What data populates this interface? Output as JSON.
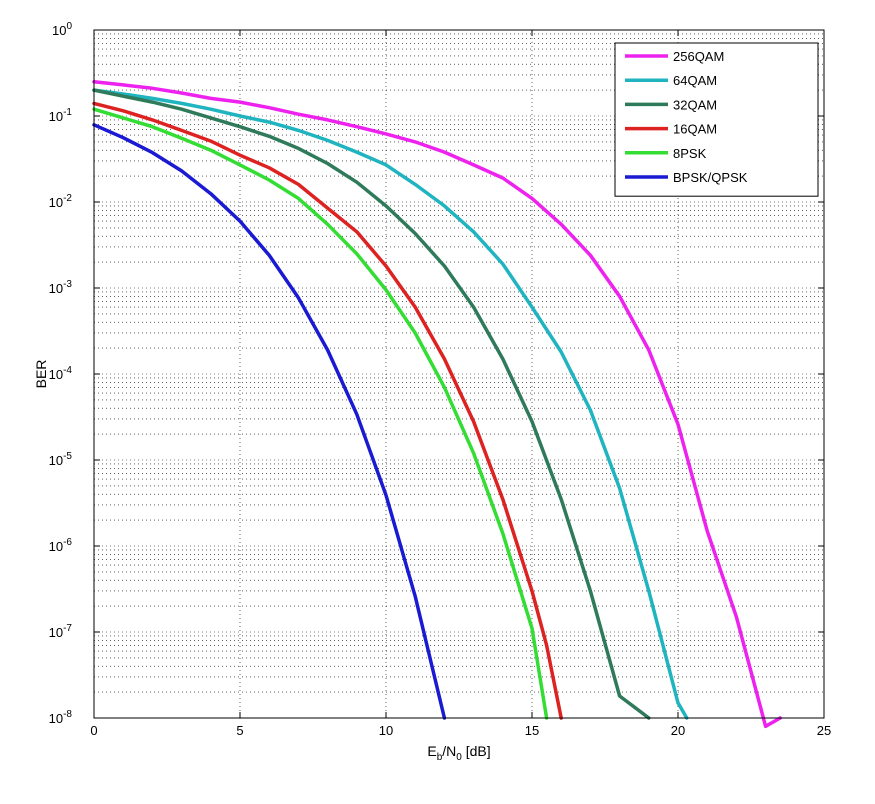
{
  "chart_data": {
    "type": "line",
    "xlabel": {
      "main": "E",
      "sub1": "b",
      "mid": "/N",
      "sub2": "0",
      "tail": " [dB]"
    },
    "ylabel": "BER",
    "yscale": "log",
    "xlim": [
      0,
      25
    ],
    "ylim": [
      1e-08,
      1
    ],
    "x_ticks": [
      0,
      5,
      10,
      15,
      20,
      25
    ],
    "y_ticks": [
      {
        "value": 1,
        "base": "10",
        "exp": "0"
      },
      {
        "value": 0.1,
        "base": "10",
        "exp": "-1"
      },
      {
        "value": 0.01,
        "base": "10",
        "exp": "-2"
      },
      {
        "value": 0.001,
        "base": "10",
        "exp": "-3"
      },
      {
        "value": 0.0001,
        "base": "10",
        "exp": "-4"
      },
      {
        "value": 1e-05,
        "base": "10",
        "exp": "-5"
      },
      {
        "value": 1e-06,
        "base": "10",
        "exp": "-6"
      },
      {
        "value": 1e-07,
        "base": "10",
        "exp": "-7"
      },
      {
        "value": 1e-08,
        "base": "10",
        "exp": "-8"
      }
    ],
    "grid": true,
    "legend_position": "top-right",
    "series": [
      {
        "name": "256QAM",
        "color": "#ee22ee",
        "x": [
          0,
          1,
          2,
          3,
          4,
          5,
          6,
          7,
          8,
          9,
          10,
          11,
          12,
          13,
          14,
          15,
          16,
          17,
          18,
          19,
          20,
          21,
          22,
          23,
          23.5
        ],
        "y": [
          0.25,
          0.23,
          0.21,
          0.185,
          0.16,
          0.145,
          0.125,
          0.105,
          0.09,
          0.075,
          0.062,
          0.05,
          0.038,
          0.027,
          0.019,
          0.011,
          0.0055,
          0.0024,
          0.0008,
          0.00019,
          2.6e-05,
          1.5e-06,
          1.5e-07,
          8e-09,
          1e-08
        ]
      },
      {
        "name": "64QAM",
        "color": "#1fb4bf",
        "x": [
          0,
          1,
          2,
          3,
          4,
          5,
          6,
          7,
          8,
          9,
          10,
          11,
          12,
          13,
          14,
          15,
          16,
          17,
          18,
          19,
          20,
          20.3
        ],
        "y": [
          0.2,
          0.18,
          0.16,
          0.14,
          0.12,
          0.1,
          0.085,
          0.068,
          0.052,
          0.038,
          0.027,
          0.016,
          0.009,
          0.0045,
          0.0019,
          0.0006,
          0.00018,
          3.8e-05,
          4.7e-06,
          3e-07,
          1.5e-08,
          1e-08
        ]
      },
      {
        "name": "32QAM",
        "color": "#2e7a5a",
        "x": [
          0,
          1,
          2,
          3,
          4,
          5,
          6,
          7,
          8,
          9,
          10,
          11,
          12,
          13,
          14,
          15,
          16,
          17,
          18,
          19
        ],
        "y": [
          0.2,
          0.17,
          0.145,
          0.12,
          0.095,
          0.075,
          0.058,
          0.042,
          0.028,
          0.017,
          0.009,
          0.0043,
          0.0018,
          0.0006,
          0.00015,
          2.8e-05,
          3.5e-06,
          3e-07,
          1.8e-08,
          1e-08
        ]
      },
      {
        "name": "16QAM",
        "color": "#dd2222",
        "x": [
          0,
          1,
          2,
          3,
          4,
          5,
          6,
          7,
          8,
          9,
          10,
          11,
          12,
          13,
          14,
          15,
          15.5,
          16
        ],
        "y": [
          0.14,
          0.115,
          0.09,
          0.068,
          0.051,
          0.035,
          0.025,
          0.016,
          0.0085,
          0.0045,
          0.0018,
          0.0006,
          0.00015,
          2.8e-05,
          3.5e-06,
          3e-07,
          7e-08,
          1e-08
        ]
      },
      {
        "name": "8PSK",
        "color": "#33dd33",
        "x": [
          0,
          1,
          2,
          3,
          4,
          5,
          6,
          7,
          8,
          9,
          10,
          11,
          12,
          13,
          14,
          15,
          15.5
        ],
        "y": [
          0.12,
          0.095,
          0.075,
          0.055,
          0.04,
          0.027,
          0.018,
          0.011,
          0.0055,
          0.0025,
          0.00095,
          0.0003,
          7e-05,
          1.2e-05,
          1.4e-06,
          1.1e-07,
          1e-08
        ]
      },
      {
        "name": "BPSK/QPSK",
        "color": "#1a1ad2",
        "x": [
          0,
          1,
          2,
          3,
          4,
          5,
          6,
          7,
          8,
          9,
          10,
          11,
          12
        ],
        "y": [
          0.079,
          0.056,
          0.0375,
          0.023,
          0.0125,
          0.006,
          0.0024,
          0.00077,
          0.00019,
          3.4e-05,
          3.9e-06,
          2.6e-07,
          1e-08
        ]
      }
    ]
  }
}
